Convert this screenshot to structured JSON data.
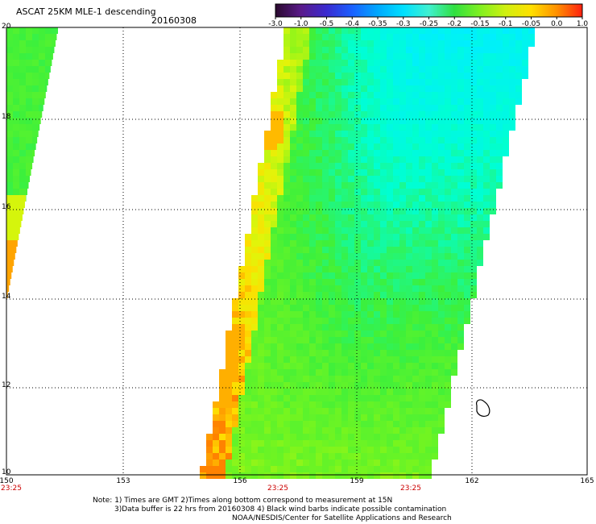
{
  "header": {
    "title": "ASCAT 25KM MLE-1 descending",
    "date": "20160308"
  },
  "colorbar": {
    "labels": [
      "-3.0",
      "-1.0",
      "-0.5",
      "-0.4",
      "-0.35",
      "-0.3",
      "-0.25",
      "-0.2",
      "-0.15",
      "-0.1",
      "-0.05",
      "0.0",
      "1.0"
    ],
    "colors": [
      "#2a0a2e",
      "#5a1a8a",
      "#3a2ad0",
      "#1a60ff",
      "#00a8ff",
      "#00e0ff",
      "#40f0d0",
      "#30e040",
      "#80f020",
      "#d0f010",
      "#ffe000",
      "#ff9000",
      "#ff2010"
    ]
  },
  "axes": {
    "lon_labels": [
      "150",
      "153",
      "156",
      "159",
      "162",
      "165"
    ],
    "lat_labels": [
      "20",
      "18",
      "16",
      "14",
      "12",
      "10"
    ],
    "time_labels": [
      "23:25",
      "23:25",
      "23:25"
    ]
  },
  "notes": {
    "line1": "Note: 1) Times are GMT 2)Times along bottom correspond to measurement at 15N",
    "line2": "3)Data buffer is 22 hrs from 20160308 4) Black wind barbs indicate possible contamination",
    "line3": "NOAA/NESDIS/Center for Satellite Applications and Research"
  },
  "colors": {
    "grid": "#000000",
    "time_label": "#cc0000"
  }
}
